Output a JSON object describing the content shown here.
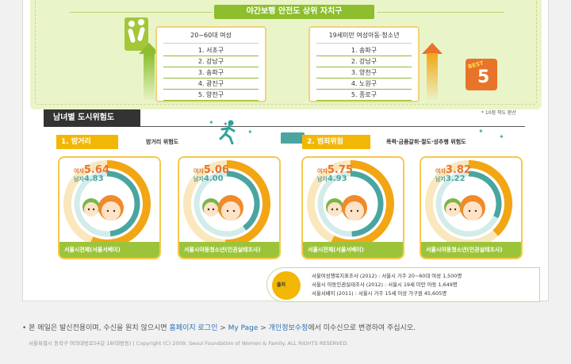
{
  "top": {
    "title": "야간보행 안전도 상위 자치구",
    "adults": {
      "header": "20~60대 여성",
      "items": [
        "1. 서초구",
        "2. 강남구",
        "3. 송파구",
        "4. 광진구",
        "5. 양천구"
      ]
    },
    "youth": {
      "header": "19세미만 여성아동·청소년",
      "items": [
        "1. 송파구",
        "2. 강남구",
        "3. 양천구",
        "4. 노원구",
        "5. 종로구"
      ]
    },
    "badge": {
      "word": "BEST",
      "number": "5"
    }
  },
  "section": {
    "title": "남녀별 도시위험도",
    "note": "* 10점 척도 환산",
    "night": {
      "label": "1. 밤거리",
      "desc": "밤거리 위험도"
    },
    "crime": {
      "label": "2. 범죄위험",
      "desc": "폭력·금품갈취·절도·성추행 위험도"
    }
  },
  "panels": [
    {
      "female_label": "여자",
      "female_value": "5.64",
      "male_label": "남자",
      "male_value": "4.83",
      "female_score": 5.64,
      "male_score": 4.83,
      "footer": "서울시전체(서울서베이)"
    },
    {
      "female_label": "여자",
      "female_value": "5.06",
      "male_label": "남자",
      "male_value": "4.00",
      "female_score": 5.06,
      "male_score": 4.0,
      "footer": "서울시아동청소년(인권실태조사)"
    },
    {
      "female_label": "여자",
      "female_value": "5.75",
      "male_label": "남자",
      "male_value": "4.93",
      "female_score": 5.75,
      "male_score": 4.93,
      "footer": "서울시전체(서울서베이)"
    },
    {
      "female_label": "여자",
      "female_value": "3.82",
      "male_label": "남자",
      "male_value": "3.22",
      "female_score": 3.82,
      "male_score": 3.22,
      "footer": "서울시아동청소년(인권실태조사)"
    }
  ],
  "source": {
    "badge": "출처",
    "lines": [
      "서울여성행복지표조사 (2012) : 서울시 거주 20~60대 여성 1,500명",
      "서울시 아동인권실태조사 (2012) : 서울시 19세 미만 아동 1,649명",
      "서울서베이 (2011) : 서울시 거주 15세 이상 가구원 45,605명"
    ]
  },
  "notice": {
    "before": "• 본 메일은 발신전용이며, 수신을 원치 않으시면 ",
    "link1": "홈페이지 로그인",
    "sep1": " > ",
    "link2": "My Page",
    "sep2": " > ",
    "link3": "개인정보수정",
    "after": "에서 미수신으로 변경하여 주십시오."
  },
  "footer": "서울특별시 동작구 여의대방로54길 18(대방동)  |  Copyright (C) 2009. Seoul Foundation of Women & Family.  ALL RIGHTS RESERVED.",
  "colors": {
    "female": "#f2a614",
    "male": "#4aa5a0",
    "footer_bar": "#9cc43b",
    "accent": "#8cbe2d"
  }
}
